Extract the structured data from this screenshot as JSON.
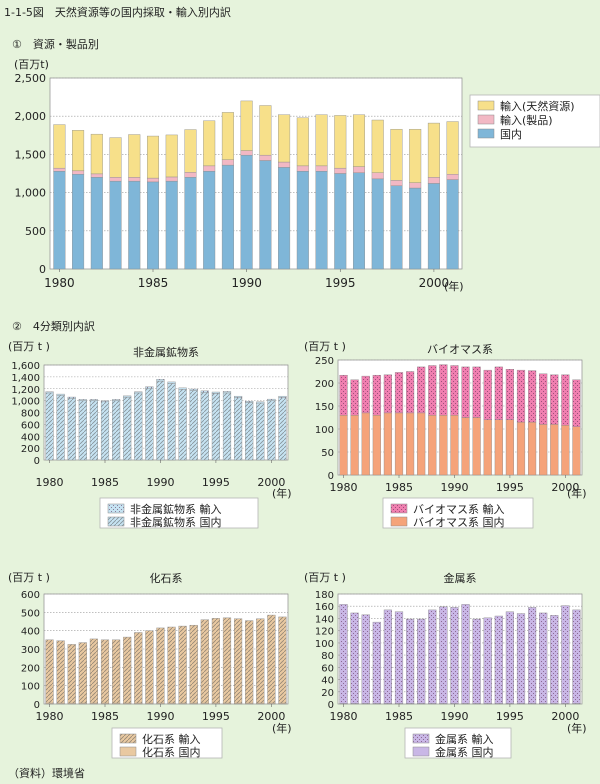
{
  "figure": {
    "title": "1-1-5図　天然資源等の国内採取・輸入別内訳",
    "section1_title": "①　資源・製品別",
    "section2_title": "②　4分類別内訳",
    "source": "（資料）環境省"
  },
  "colors": {
    "main_import_resource": "#f7e08a",
    "main_import_product": "#f2b8c4",
    "main_domestic": "#7fb6d8",
    "nonmetal": "#c6e3f2",
    "biomass_import": "#f07fb0",
    "biomass_domestic": "#f5a37a",
    "fossil": "#e9c9a1",
    "metal": "#c9b7e6"
  },
  "chart_data": [
    {
      "id": "main",
      "type": "bar",
      "stacked": true,
      "title": "",
      "ylabel": "(百万t)",
      "x_unit_label": "(年)",
      "ylim": [
        0,
        2500
      ],
      "yticks": [
        "0",
        "500",
        "1,000",
        "1,500",
        "2,000",
        "2,500"
      ],
      "ytick_values": [
        0,
        500,
        1000,
        1500,
        2000,
        2500
      ],
      "x_tick_labels": [
        "1980",
        "1985",
        "1990",
        "1995",
        "2000"
      ],
      "x_tick_values": [
        1980,
        1985,
        1990,
        1995,
        2000
      ],
      "grid": true,
      "legend_position": "right",
      "categories": [
        1980,
        1981,
        1982,
        1983,
        1984,
        1985,
        1986,
        1987,
        1988,
        1989,
        1990,
        1991,
        1992,
        1993,
        1994,
        1995,
        1996,
        1997,
        1998,
        1999,
        2000,
        2001
      ],
      "series": [
        {
          "name": "国内",
          "color_key": "main_domestic",
          "values": [
            1280,
            1240,
            1200,
            1150,
            1150,
            1140,
            1150,
            1200,
            1280,
            1360,
            1490,
            1420,
            1330,
            1280,
            1280,
            1250,
            1260,
            1180,
            1090,
            1060,
            1120,
            1170
          ]
        },
        {
          "name": "輸入(製品)",
          "color_key": "main_import_product",
          "values": [
            40,
            45,
            45,
            50,
            50,
            50,
            55,
            65,
            70,
            70,
            60,
            70,
            70,
            70,
            70,
            70,
            80,
            80,
            70,
            70,
            80,
            70
          ]
        },
        {
          "name": "輸入(天然資源)",
          "color_key": "main_import_resource",
          "values": [
            570,
            530,
            520,
            520,
            560,
            550,
            550,
            560,
            590,
            620,
            650,
            650,
            620,
            630,
            670,
            690,
            680,
            690,
            670,
            700,
            710,
            690
          ]
        }
      ]
    },
    {
      "id": "nonmetal",
      "type": "bar",
      "stacked": true,
      "title": "非金属鉱物系",
      "ylabel": "(百万 t )",
      "x_unit_label": "(年)",
      "ylim": [
        0,
        1600
      ],
      "yticks": [
        "0",
        "200",
        "400",
        "600",
        "800",
        "1,000",
        "1,200",
        "1,400",
        "1,600"
      ],
      "ytick_values": [
        0,
        200,
        400,
        600,
        800,
        1000,
        1200,
        1400,
        1600
      ],
      "x_tick_labels": [
        "1980",
        "1985",
        "1990",
        "1995",
        "2000"
      ],
      "x_tick_values": [
        1980,
        1985,
        1990,
        1995,
        2000
      ],
      "grid": true,
      "legend_position": "bottom",
      "categories": [
        1980,
        1981,
        1982,
        1983,
        1984,
        1985,
        1986,
        1987,
        1988,
        1989,
        1990,
        1991,
        1992,
        1993,
        1994,
        1995,
        1996,
        1997,
        1998,
        1999,
        2000,
        2001
      ],
      "series": [
        {
          "name": "非金属鉱物系 国内",
          "color_key": "nonmetal",
          "pattern": "diag",
          "values": [
            1130,
            1090,
            1040,
            1000,
            1000,
            980,
            1000,
            1060,
            1130,
            1210,
            1330,
            1290,
            1190,
            1170,
            1140,
            1120,
            1130,
            1050,
            970,
            960,
            1000,
            1050
          ]
        },
        {
          "name": "非金属鉱物系 輸入",
          "color_key": "nonmetal",
          "pattern": "dot",
          "values": [
            20,
            20,
            20,
            20,
            20,
            20,
            20,
            20,
            20,
            25,
            30,
            25,
            25,
            25,
            25,
            25,
            25,
            25,
            20,
            20,
            25,
            25
          ]
        }
      ]
    },
    {
      "id": "biomass",
      "type": "bar",
      "stacked": true,
      "title": "バイオマス系",
      "ylabel": "(百万 t )",
      "x_unit_label": "(年)",
      "ylim": [
        0,
        250
      ],
      "yticks": [
        "0",
        "50",
        "100",
        "150",
        "200",
        "250"
      ],
      "ytick_values": [
        0,
        50,
        100,
        150,
        200,
        250
      ],
      "x_tick_labels": [
        "1980",
        "1985",
        "1990",
        "1995",
        "2000"
      ],
      "x_tick_values": [
        1980,
        1985,
        1990,
        1995,
        2000
      ],
      "grid": true,
      "legend_position": "bottom",
      "categories": [
        1980,
        1981,
        1982,
        1983,
        1984,
        1985,
        1986,
        1987,
        1988,
        1989,
        1990,
        1991,
        1992,
        1993,
        1994,
        1995,
        1996,
        1997,
        1998,
        1999,
        2000,
        2001
      ],
      "series": [
        {
          "name": "バイオマス系 国内",
          "color_key": "biomass_domestic",
          "pattern": "solid",
          "values": [
            130,
            130,
            135,
            130,
            135,
            135,
            135,
            135,
            130,
            130,
            130,
            125,
            125,
            120,
            120,
            120,
            115,
            115,
            110,
            110,
            108,
            105
          ]
        },
        {
          "name": "バイオマス系 輸入",
          "color_key": "biomass_import",
          "pattern": "dot",
          "values": [
            87,
            77,
            80,
            87,
            83,
            88,
            90,
            100,
            108,
            110,
            108,
            110,
            110,
            108,
            115,
            110,
            113,
            112,
            110,
            108,
            110,
            102
          ]
        }
      ]
    },
    {
      "id": "fossil",
      "type": "bar",
      "stacked": true,
      "title": "化石系",
      "ylabel": "(百万 t )",
      "x_unit_label": "(年)",
      "ylim": [
        0,
        600
      ],
      "yticks": [
        "0",
        "100",
        "200",
        "300",
        "400",
        "500",
        "600"
      ],
      "ytick_values": [
        0,
        100,
        200,
        300,
        400,
        500,
        600
      ],
      "x_tick_labels": [
        "1980",
        "1985",
        "1990",
        "1995",
        "2000"
      ],
      "x_tick_values": [
        1980,
        1985,
        1990,
        1995,
        2000
      ],
      "grid": true,
      "legend_position": "bottom",
      "categories": [
        1980,
        1981,
        1982,
        1983,
        1984,
        1985,
        1986,
        1987,
        1988,
        1989,
        1990,
        1991,
        1992,
        1993,
        1994,
        1995,
        1996,
        1997,
        1998,
        1999,
        2000,
        2001
      ],
      "series": [
        {
          "name": "化石系 国内",
          "color_key": "fossil",
          "pattern": "solid",
          "values": [
            5,
            5,
            5,
            5,
            5,
            5,
            5,
            5,
            5,
            5,
            5,
            5,
            5,
            5,
            5,
            5,
            5,
            5,
            5,
            5,
            5,
            5
          ]
        },
        {
          "name": "化石系 輸入",
          "color_key": "fossil",
          "pattern": "diag",
          "values": [
            345,
            340,
            320,
            330,
            350,
            345,
            345,
            360,
            385,
            395,
            410,
            415,
            420,
            425,
            455,
            462,
            465,
            460,
            450,
            460,
            480,
            470
          ]
        }
      ]
    },
    {
      "id": "metal",
      "type": "bar",
      "stacked": true,
      "title": "金属系",
      "ylabel": "(百万 t )",
      "x_unit_label": "(年)",
      "ylim": [
        0,
        180
      ],
      "yticks": [
        "0",
        "20",
        "40",
        "60",
        "80",
        "100",
        "120",
        "140",
        "160",
        "180"
      ],
      "ytick_values": [
        0,
        20,
        40,
        60,
        80,
        100,
        120,
        140,
        160,
        180
      ],
      "x_tick_labels": [
        "1980",
        "1985",
        "1990",
        "1995",
        "2000"
      ],
      "x_tick_values": [
        1980,
        1985,
        1990,
        1995,
        2000
      ],
      "grid": true,
      "legend_position": "bottom",
      "categories": [
        1980,
        1981,
        1982,
        1983,
        1984,
        1985,
        1986,
        1987,
        1988,
        1989,
        1990,
        1991,
        1992,
        1993,
        1994,
        1995,
        1996,
        1997,
        1998,
        1999,
        2000,
        2001
      ],
      "series": [
        {
          "name": "金属系 国内",
          "color_key": "metal",
          "pattern": "solid",
          "values": [
            1,
            1,
            1,
            1,
            1,
            1,
            1,
            1,
            1,
            1,
            1,
            1,
            1,
            1,
            1,
            1,
            1,
            1,
            1,
            1,
            1,
            1
          ]
        },
        {
          "name": "金属系 輸入",
          "color_key": "metal",
          "pattern": "dot",
          "values": [
            162,
            148,
            145,
            133,
            153,
            150,
            138,
            138,
            153,
            158,
            157,
            162,
            138,
            140,
            143,
            150,
            147,
            157,
            148,
            144,
            160,
            153
          ]
        }
      ]
    }
  ]
}
